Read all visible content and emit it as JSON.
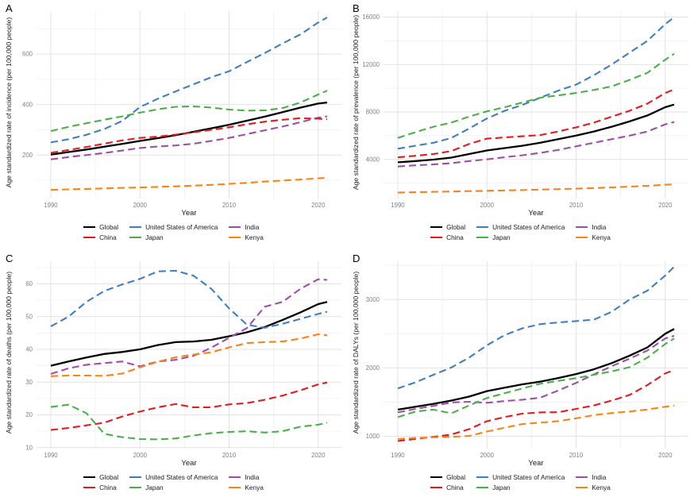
{
  "page": {
    "background": "#ffffff"
  },
  "x_label": "Year",
  "years": [
    1990,
    1992,
    1994,
    1996,
    1998,
    2000,
    2002,
    2004,
    2006,
    2008,
    2010,
    2012,
    2014,
    2016,
    2018,
    2020,
    2021
  ],
  "series_colors": {
    "Global": "#000000",
    "United States of America": "#3f7fbf",
    "China": "#e41a1c",
    "Japan": "#4daf4a",
    "India": "#9d4fa8",
    "Kenya": "#fb8313"
  },
  "legend": {
    "rows": [
      [
        "Global",
        "United States of America",
        "India"
      ],
      [
        "China",
        "Japan",
        "Kenya"
      ]
    ]
  },
  "chart_data": [
    {
      "panel": "A",
      "type": "line",
      "ylabel": "Age standardized rate of incidence (per 100,000 people)",
      "xlabel": "Year",
      "yticks": [
        200,
        400,
        600
      ],
      "ylim": [
        28,
        770
      ],
      "xticks": [
        1990,
        2000,
        2010,
        2020
      ],
      "xlim": [
        1988.4,
        2022.6
      ],
      "grid": true,
      "legend_position": "bottom",
      "series": [
        {
          "name": "Global",
          "values": [
            202,
            212,
            222,
            233,
            244,
            256,
            267,
            279,
            292,
            306,
            320,
            336,
            352,
            370,
            388,
            404,
            408
          ]
        },
        {
          "name": "United States of America",
          "values": [
            250,
            263,
            280,
            303,
            335,
            390,
            423,
            452,
            480,
            508,
            532,
            568,
            604,
            642,
            678,
            725,
            745
          ]
        },
        {
          "name": "India",
          "values": [
            183,
            192,
            200,
            208,
            218,
            228,
            234,
            238,
            245,
            256,
            268,
            283,
            298,
            313,
            330,
            348,
            353
          ]
        },
        {
          "name": "China",
          "values": [
            209,
            220,
            232,
            245,
            258,
            268,
            273,
            281,
            290,
            300,
            310,
            322,
            332,
            340,
            346,
            344,
            342
          ]
        },
        {
          "name": "Japan",
          "values": [
            295,
            312,
            326,
            340,
            353,
            368,
            381,
            391,
            393,
            388,
            380,
            376,
            377,
            386,
            408,
            440,
            455
          ]
        },
        {
          "name": "Kenya",
          "values": [
            62,
            64,
            66,
            68,
            70,
            72,
            74,
            76,
            79,
            82,
            86,
            90,
            95,
            99,
            103,
            108,
            110
          ]
        }
      ]
    },
    {
      "panel": "B",
      "type": "line",
      "ylabel": "Age standardized rate of prevalence (per 100,000 people)",
      "xlabel": "Year",
      "yticks": [
        4000,
        8000,
        12000,
        16000
      ],
      "ylim": [
        700,
        16500
      ],
      "xticks": [
        1990,
        2000,
        2010,
        2020
      ],
      "xlim": [
        1988.4,
        2022.6
      ],
      "grid": true,
      "legend_position": "bottom",
      "series": [
        {
          "name": "Global",
          "values": [
            3750,
            3850,
            3980,
            4150,
            4450,
            4750,
            4950,
            5150,
            5400,
            5700,
            6000,
            6350,
            6750,
            7200,
            7700,
            8400,
            8620
          ]
        },
        {
          "name": "United States of America",
          "values": [
            4900,
            5150,
            5400,
            5800,
            6600,
            7450,
            8100,
            8600,
            9200,
            9800,
            10300,
            11100,
            12000,
            13000,
            14000,
            15400,
            16000
          ]
        },
        {
          "name": "India",
          "values": [
            3400,
            3500,
            3570,
            3680,
            3850,
            4000,
            4180,
            4350,
            4550,
            4800,
            5100,
            5400,
            5700,
            6000,
            6350,
            6950,
            7150
          ]
        },
        {
          "name": "China",
          "values": [
            4170,
            4300,
            4450,
            4700,
            5300,
            5750,
            5850,
            5950,
            6050,
            6350,
            6700,
            7100,
            7600,
            8100,
            8700,
            9600,
            9900
          ]
        },
        {
          "name": "Japan",
          "values": [
            5800,
            6300,
            6750,
            7100,
            7600,
            8050,
            8400,
            8800,
            9200,
            9400,
            9600,
            9850,
            10150,
            10700,
            11300,
            12400,
            12900
          ]
        },
        {
          "name": "Kenya",
          "values": [
            1200,
            1230,
            1260,
            1290,
            1320,
            1350,
            1380,
            1410,
            1450,
            1490,
            1530,
            1580,
            1640,
            1700,
            1770,
            1860,
            1900
          ]
        }
      ]
    },
    {
      "panel": "C",
      "type": "line",
      "ylabel": "Age standardized rate of deaths (per 100,000 people)",
      "xlabel": "Year",
      "yticks": [
        10,
        20,
        30,
        40,
        50,
        60
      ],
      "ylim": [
        9.7,
        66.9
      ],
      "xticks": [
        1990,
        2000,
        2010,
        2020
      ],
      "xlim": [
        1988.4,
        2022.6
      ],
      "grid": true,
      "legend_position": "bottom",
      "series": [
        {
          "name": "Global",
          "values": [
            35.0,
            36.3,
            37.5,
            38.6,
            39.2,
            40.0,
            41.3,
            42.2,
            42.4,
            42.9,
            44.0,
            45.2,
            46.8,
            49.0,
            51.3,
            53.8,
            54.5
          ]
        },
        {
          "name": "United States of America",
          "values": [
            47.0,
            50.0,
            54.5,
            57.8,
            59.8,
            61.5,
            63.8,
            64.0,
            62.5,
            58.5,
            52.5,
            47.5,
            46.6,
            47.8,
            49.3,
            50.8,
            51.5
          ]
        },
        {
          "name": "India",
          "values": [
            32.5,
            34.2,
            35.3,
            35.8,
            36.3,
            34.8,
            36.3,
            36.8,
            38.0,
            40.5,
            43.5,
            46.5,
            53.0,
            54.5,
            58.5,
            61.4,
            61.2
          ]
        },
        {
          "name": "China",
          "values": [
            15.4,
            16.0,
            16.8,
            17.6,
            19.5,
            21.0,
            22.3,
            23.3,
            22.3,
            22.3,
            23.2,
            23.6,
            24.6,
            25.9,
            27.5,
            29.3,
            29.9
          ]
        },
        {
          "name": "Japan",
          "values": [
            22.4,
            23.1,
            20.5,
            14.2,
            13.2,
            12.6,
            12.5,
            12.8,
            13.7,
            14.4,
            14.8,
            15.0,
            14.6,
            15.0,
            16.4,
            17.0,
            17.6
          ]
        },
        {
          "name": "Kenya",
          "values": [
            31.8,
            32.0,
            32.0,
            31.9,
            32.6,
            34.5,
            36.2,
            37.6,
            38.4,
            39.1,
            40.6,
            41.9,
            42.2,
            42.4,
            43.3,
            44.6,
            44.3
          ]
        }
      ]
    },
    {
      "panel": "D",
      "type": "line",
      "ylabel": "Age standardized rate of DALYs (per 100,000 people)",
      "xlabel": "Year",
      "yticks": [
        1000,
        2000,
        3000
      ],
      "ylim": [
        820,
        3560
      ],
      "xticks": [
        1990,
        2000,
        2010,
        2020
      ],
      "xlim": [
        1988.4,
        2022.6
      ],
      "grid": true,
      "legend_position": "bottom",
      "series": [
        {
          "name": "Global",
          "values": [
            1390,
            1432,
            1475,
            1522,
            1580,
            1660,
            1712,
            1760,
            1800,
            1852,
            1910,
            1980,
            2070,
            2180,
            2300,
            2500,
            2570
          ]
        },
        {
          "name": "United States of America",
          "values": [
            1700,
            1790,
            1900,
            2005,
            2150,
            2330,
            2480,
            2580,
            2640,
            2665,
            2685,
            2705,
            2820,
            3000,
            3130,
            3350,
            3480
          ]
        },
        {
          "name": "India",
          "values": [
            1350,
            1400,
            1445,
            1495,
            1505,
            1490,
            1515,
            1535,
            1565,
            1670,
            1780,
            1905,
            2025,
            2135,
            2255,
            2430,
            2470
          ]
        },
        {
          "name": "China",
          "values": [
            930,
            962,
            992,
            1025,
            1105,
            1220,
            1282,
            1332,
            1350,
            1352,
            1400,
            1452,
            1522,
            1605,
            1750,
            1920,
            1970
          ]
        },
        {
          "name": "Japan",
          "values": [
            1280,
            1362,
            1390,
            1335,
            1450,
            1560,
            1630,
            1700,
            1770,
            1810,
            1850,
            1900,
            1950,
            2010,
            2150,
            2350,
            2430
          ]
        },
        {
          "name": "Kenya",
          "values": [
            960,
            975,
            985,
            992,
            1005,
            1070,
            1125,
            1180,
            1200,
            1222,
            1262,
            1310,
            1340,
            1362,
            1392,
            1432,
            1450
          ]
        }
      ]
    }
  ]
}
